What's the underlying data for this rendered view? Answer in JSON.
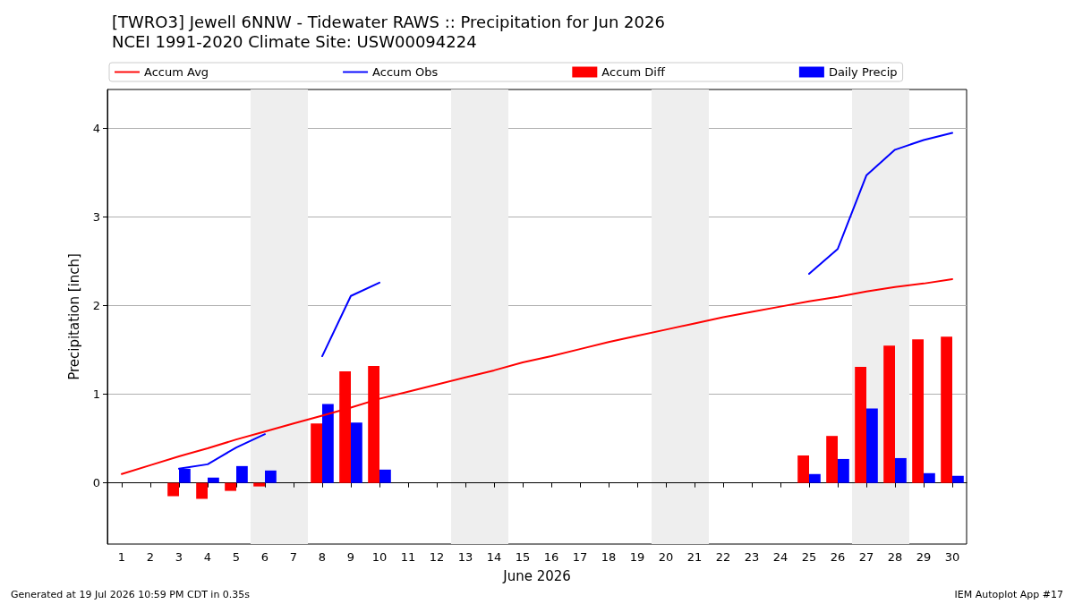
{
  "chart_data": {
    "type": "line",
    "title": "[TWRO3] Jewell 6NNW - Tidewater RAWS :: Precipitation for Jun 2026",
    "subtitle": "NCEI 1991-2020 Climate Site: USW00094224",
    "xlabel": "June 2026",
    "ylabel": "Precipitation [inch]",
    "x": [
      1,
      2,
      3,
      4,
      5,
      6,
      7,
      8,
      9,
      10,
      11,
      12,
      13,
      14,
      15,
      16,
      17,
      18,
      19,
      20,
      21,
      22,
      23,
      24,
      25,
      26,
      27,
      28,
      29,
      30
    ],
    "xlim": [
      0.5,
      30.5
    ],
    "xticks": [
      1,
      2,
      3,
      4,
      5,
      6,
      7,
      8,
      9,
      10,
      11,
      12,
      13,
      14,
      15,
      16,
      17,
      18,
      19,
      20,
      21,
      22,
      23,
      24,
      25,
      26,
      27,
      28,
      29,
      30
    ],
    "ylim": [
      -0.69,
      4.44
    ],
    "yticks": [
      0,
      1,
      2,
      3,
      4
    ],
    "grid": "y",
    "legend": "top",
    "marker": "none",
    "series": [
      {
        "name": "Accum Avg",
        "color": "#ff0000",
        "values": [
          0.1,
          0.2,
          0.3,
          0.39,
          0.49,
          0.58,
          0.67,
          0.76,
          0.85,
          0.95,
          1.03,
          1.11,
          1.19,
          1.27,
          1.36,
          1.43,
          1.51,
          1.59,
          1.66,
          1.73,
          1.8,
          1.87,
          1.93,
          1.99,
          2.05,
          2.1,
          2.16,
          2.21,
          2.25,
          2.3
        ]
      },
      {
        "name": "Accum Obs",
        "color": "#0000ff",
        "values": [
          null,
          null,
          0.16,
          0.21,
          0.4,
          0.55,
          null,
          1.43,
          2.11,
          2.26,
          null,
          null,
          null,
          null,
          null,
          null,
          null,
          null,
          null,
          null,
          null,
          null,
          null,
          null,
          2.36,
          2.64,
          3.47,
          3.76,
          3.87,
          3.95
        ]
      },
      {
        "name": "Accum Diff",
        "type": "bar",
        "color": "#ff0000",
        "values": [
          null,
          null,
          -0.15,
          -0.18,
          -0.09,
          -0.04,
          null,
          0.67,
          1.26,
          1.32,
          null,
          null,
          null,
          null,
          null,
          null,
          null,
          null,
          null,
          null,
          null,
          null,
          null,
          null,
          0.31,
          0.53,
          1.31,
          1.55,
          1.62,
          1.65
        ]
      },
      {
        "name": "Daily Precip",
        "type": "bar",
        "color": "#0000ff",
        "values": [
          null,
          null,
          0.16,
          0.06,
          0.19,
          0.14,
          null,
          0.89,
          0.68,
          0.15,
          null,
          null,
          null,
          null,
          null,
          null,
          null,
          null,
          null,
          null,
          null,
          null,
          null,
          null,
          0.1,
          0.27,
          0.84,
          0.28,
          0.11,
          0.08
        ]
      }
    ],
    "bands": [
      {
        "axis": "x",
        "from": 5.5,
        "to": 7.5,
        "color": "#eeeeee"
      },
      {
        "axis": "x",
        "from": 12.5,
        "to": 14.5,
        "color": "#eeeeee"
      },
      {
        "axis": "x",
        "from": 19.5,
        "to": 21.5,
        "color": "#eeeeee"
      },
      {
        "axis": "x",
        "from": 26.5,
        "to": 28.5,
        "color": "#eeeeee"
      }
    ],
    "annotations": [
      "Generated at 19 Jul 2026 10:59 PM CDT in 0.35s",
      "IEM Autoplot App #17"
    ]
  }
}
